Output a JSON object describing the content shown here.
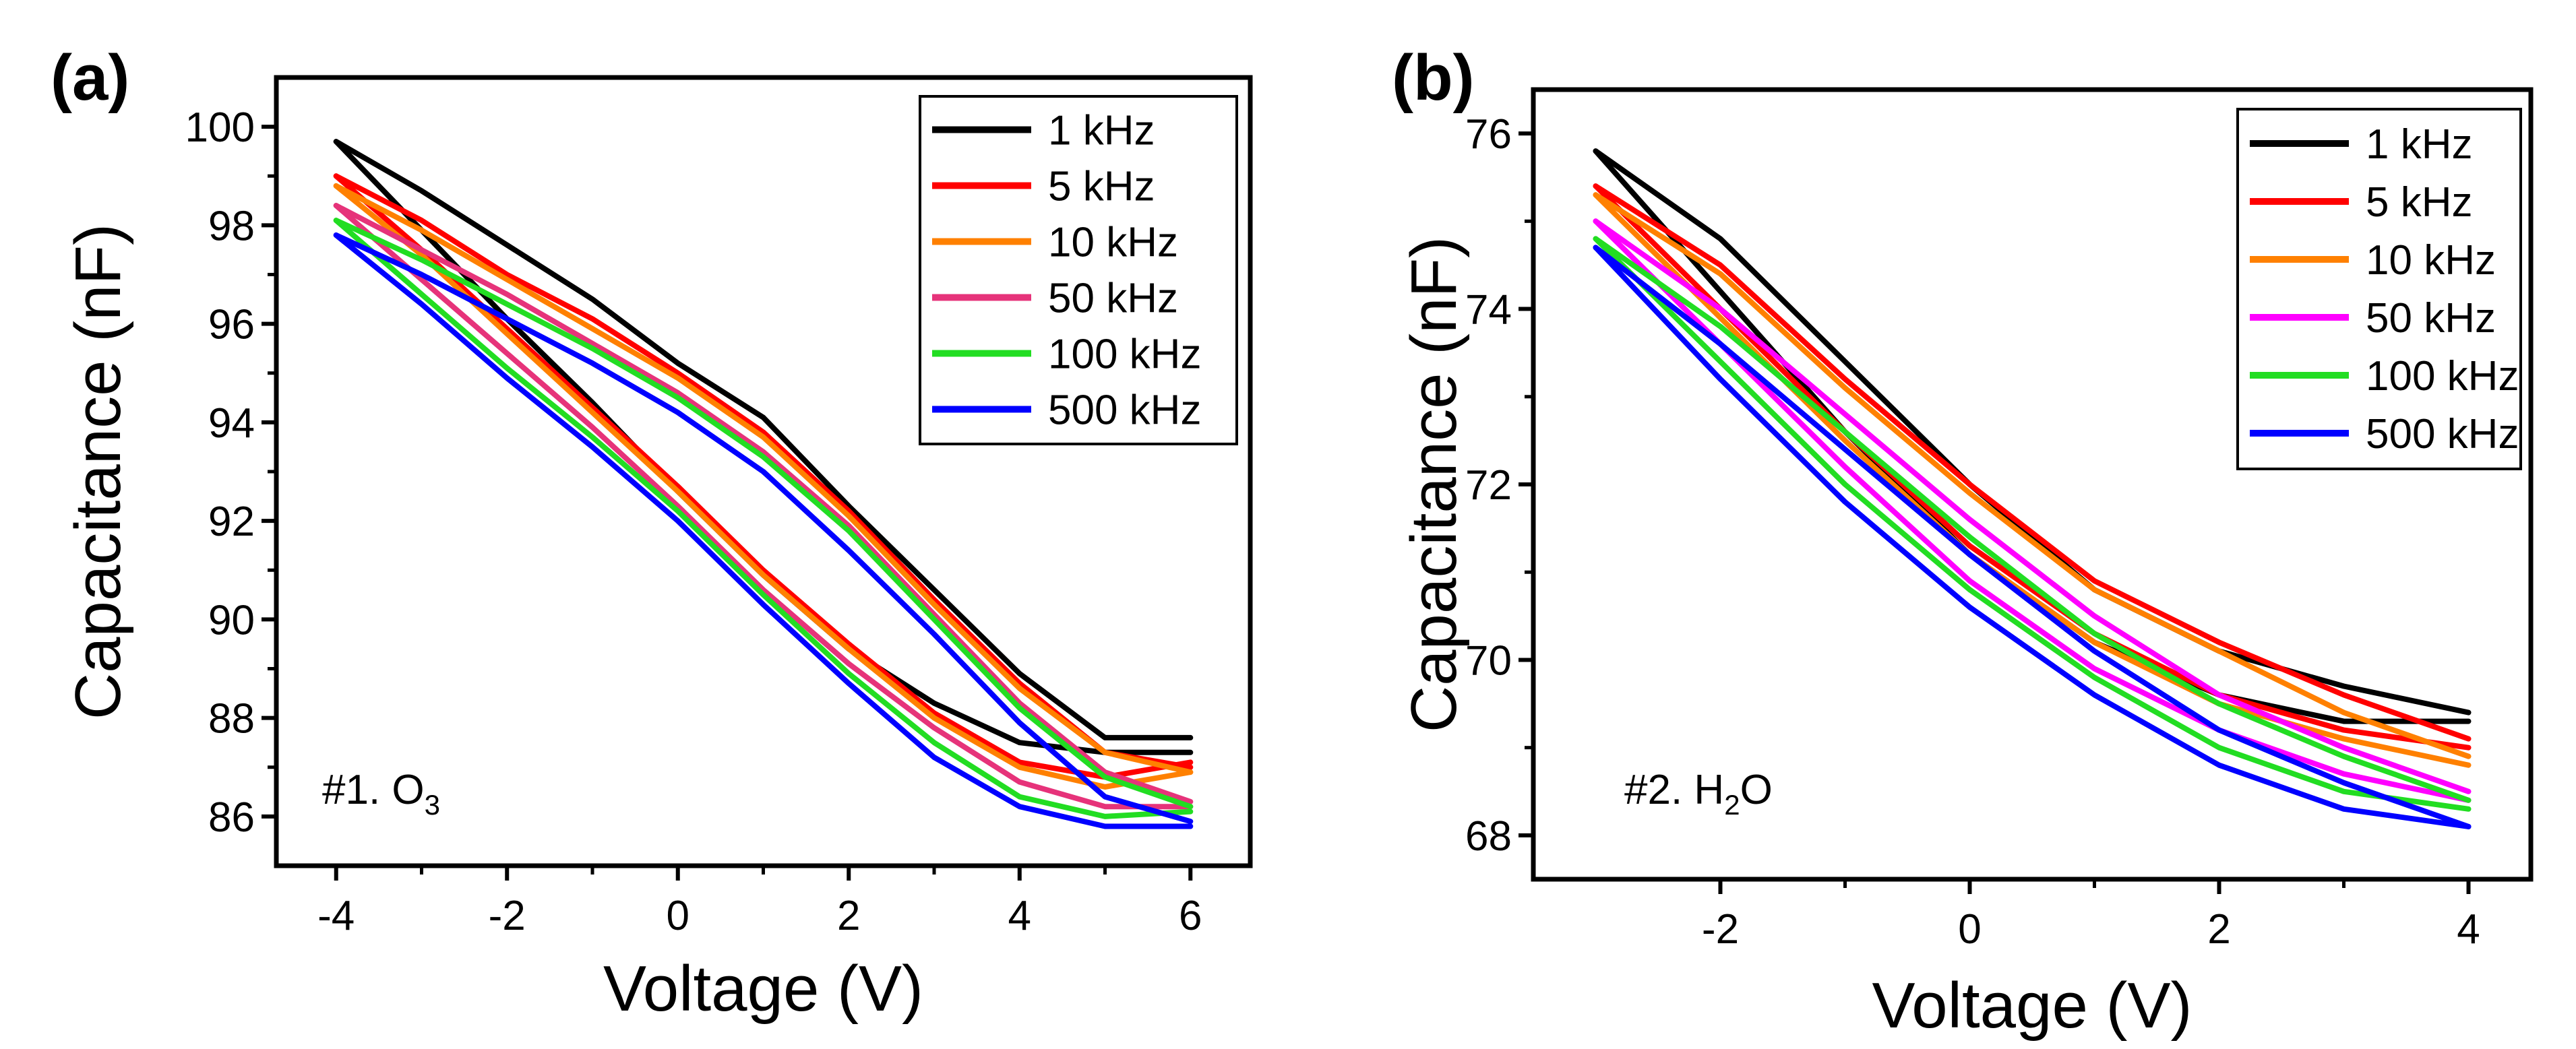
{
  "figure": {
    "panels": [
      {
        "label": "(a)",
        "annotation": {
          "prefix": "#1. O",
          "sub": "3",
          "suffix": ""
        }
      },
      {
        "label": "(b)",
        "annotation": {
          "prefix": "#2. H",
          "sub": "2",
          "suffix": "O"
        }
      }
    ]
  },
  "chart_data": [
    {
      "type": "line",
      "panel": "(a)",
      "xlabel": "Voltage (V)",
      "ylabel": "Capacitance (nF)",
      "xlim": [
        -4.7,
        6.7
      ],
      "ylim": [
        85.0,
        101.0
      ],
      "xticks": [
        -4,
        -2,
        0,
        2,
        4,
        6
      ],
      "yticks": [
        86,
        88,
        90,
        92,
        94,
        96,
        98,
        100
      ],
      "annotation": "#1. O3",
      "legend": {
        "position": "top-right"
      },
      "series": [
        {
          "name": "1 kHz",
          "color": "#000000",
          "upper": {
            "x": [
              -4,
              -3,
              -2,
              -1,
              0,
              1,
              2,
              3,
              4,
              5,
              6
            ],
            "y": [
              99.7,
              98.7,
              97.6,
              96.5,
              95.2,
              94.1,
              92.3,
              90.6,
              88.9,
              87.6,
              87.6
            ]
          },
          "lower": {
            "x": [
              -4,
              -3,
              -2,
              -1,
              0,
              1,
              2,
              3,
              4,
              5,
              6
            ],
            "y": [
              99.7,
              97.9,
              96.1,
              94.4,
              92.6,
              90.9,
              89.4,
              88.3,
              87.5,
              87.3,
              87.3
            ]
          }
        },
        {
          "name": "5 kHz",
          "color": "#ff0000",
          "upper": {
            "x": [
              -4,
              -3,
              -2,
              -1,
              0,
              1,
              2,
              3,
              4,
              5,
              6
            ],
            "y": [
              99.0,
              98.1,
              97.0,
              96.1,
              95.0,
              93.8,
              92.2,
              90.4,
              88.7,
              87.3,
              87.0
            ]
          },
          "lower": {
            "x": [
              -4,
              -3,
              -2,
              -1,
              0,
              1,
              2,
              3,
              4,
              5,
              6
            ],
            "y": [
              99.0,
              97.5,
              95.9,
              94.3,
              92.7,
              91.0,
              89.5,
              88.1,
              87.1,
              86.8,
              87.1
            ]
          }
        },
        {
          "name": "10 kHz",
          "color": "#ff8000",
          "upper": {
            "x": [
              -4,
              -3,
              -2,
              -1,
              0,
              1,
              2,
              3,
              4,
              5,
              6
            ],
            "y": [
              98.8,
              97.9,
              96.9,
              95.9,
              94.9,
              93.7,
              92.1,
              90.3,
              88.6,
              87.3,
              86.9
            ]
          },
          "lower": {
            "x": [
              -4,
              -3,
              -2,
              -1,
              0,
              1,
              2,
              3,
              4,
              5,
              6
            ],
            "y": [
              98.8,
              97.4,
              95.8,
              94.2,
              92.6,
              90.9,
              89.4,
              88.0,
              87.0,
              86.6,
              86.9
            ]
          }
        },
        {
          "name": "50 kHz",
          "color": "#e6337a",
          "upper": {
            "x": [
              -4,
              -3,
              -2,
              -1,
              0,
              1,
              2,
              3,
              4,
              5,
              6
            ],
            "y": [
              98.4,
              97.5,
              96.6,
              95.6,
              94.6,
              93.4,
              91.9,
              90.1,
              88.3,
              86.9,
              86.3
            ]
          },
          "lower": {
            "x": [
              -4,
              -3,
              -2,
              -1,
              0,
              1,
              2,
              3,
              4,
              5,
              6
            ],
            "y": [
              98.4,
              96.9,
              95.4,
              93.9,
              92.3,
              90.6,
              89.1,
              87.8,
              86.7,
              86.2,
              86.2
            ]
          }
        },
        {
          "name": "100 kHz",
          "color": "#22dd22",
          "upper": {
            "x": [
              -4,
              -3,
              -2,
              -1,
              0,
              1,
              2,
              3,
              4,
              5,
              6
            ],
            "y": [
              98.1,
              97.3,
              96.4,
              95.5,
              94.5,
              93.3,
              91.8,
              90.0,
              88.2,
              86.8,
              86.2
            ]
          },
          "lower": {
            "x": [
              -4,
              -3,
              -2,
              -1,
              0,
              1,
              2,
              3,
              4,
              5,
              6
            ],
            "y": [
              98.1,
              96.6,
              95.1,
              93.7,
              92.2,
              90.5,
              88.9,
              87.5,
              86.4,
              86.0,
              86.1
            ]
          }
        },
        {
          "name": "500 kHz",
          "color": "#0000ff",
          "upper": {
            "x": [
              -4,
              -3,
              -2,
              -1,
              0,
              1,
              2,
              3,
              4,
              5,
              6
            ],
            "y": [
              97.8,
              97.0,
              96.1,
              95.2,
              94.2,
              93.0,
              91.4,
              89.7,
              87.9,
              86.4,
              85.9
            ]
          },
          "lower": {
            "x": [
              -4,
              -3,
              -2,
              -1,
              0,
              1,
              2,
              3,
              4,
              5,
              6
            ],
            "y": [
              97.8,
              96.4,
              94.9,
              93.5,
              92.0,
              90.3,
              88.7,
              87.2,
              86.2,
              85.8,
              85.8
            ]
          }
        }
      ]
    },
    {
      "type": "line",
      "panel": "(b)",
      "xlabel": "Voltage (V)",
      "ylabel": "Capacitance (nF)",
      "xlim": [
        -3.5,
        4.5
      ],
      "ylim": [
        67.5,
        76.5
      ],
      "xticks": [
        -2,
        0,
        2,
        4
      ],
      "yticks": [
        68,
        70,
        72,
        74,
        76
      ],
      "annotation": "#2. H2O",
      "legend": {
        "position": "top-right"
      },
      "series": [
        {
          "name": "1 kHz",
          "color": "#000000",
          "upper": {
            "x": [
              -3,
              -2,
              -1,
              0,
              1,
              2,
              3,
              4
            ],
            "y": [
              75.8,
              74.8,
              73.4,
              72.0,
              70.8,
              70.1,
              69.7,
              69.4
            ]
          },
          "lower": {
            "x": [
              -3,
              -2,
              -1,
              0,
              1,
              2,
              3,
              4
            ],
            "y": [
              75.8,
              74.2,
              72.6,
              71.2,
              70.2,
              69.6,
              69.3,
              69.3
            ]
          }
        },
        {
          "name": "5 kHz",
          "color": "#ff0000",
          "upper": {
            "x": [
              -3,
              -2,
              -1,
              0,
              1,
              2,
              3,
              4
            ],
            "y": [
              75.4,
              74.5,
              73.2,
              72.0,
              70.9,
              70.2,
              69.6,
              69.1
            ]
          },
          "lower": {
            "x": [
              -3,
              -2,
              -1,
              0,
              1,
              2,
              3,
              4
            ],
            "y": [
              75.4,
              74.0,
              72.6,
              71.3,
              70.3,
              69.6,
              69.2,
              69.0
            ]
          }
        },
        {
          "name": "10 kHz",
          "color": "#ff8000",
          "upper": {
            "x": [
              -3,
              -2,
              -1,
              0,
              1,
              2,
              3,
              4
            ],
            "y": [
              75.3,
              74.4,
              73.1,
              71.9,
              70.8,
              70.1,
              69.4,
              68.9
            ]
          },
          "lower": {
            "x": [
              -3,
              -2,
              -1,
              0,
              1,
              2,
              3,
              4
            ],
            "y": [
              75.3,
              73.9,
              72.5,
              71.2,
              70.2,
              69.5,
              69.1,
              68.8
            ]
          }
        },
        {
          "name": "50 kHz",
          "color": "#ff00ff",
          "upper": {
            "x": [
              -3,
              -2,
              -1,
              0,
              1,
              2,
              3,
              4
            ],
            "y": [
              75.0,
              74.0,
              72.8,
              71.6,
              70.5,
              69.6,
              69.0,
              68.5
            ]
          },
          "lower": {
            "x": [
              -3,
              -2,
              -1,
              0,
              1,
              2,
              3,
              4
            ],
            "y": [
              75.0,
              73.6,
              72.2,
              70.9,
              69.9,
              69.2,
              68.7,
              68.4
            ]
          }
        },
        {
          "name": "100 kHz",
          "color": "#22dd22",
          "upper": {
            "x": [
              -3,
              -2,
              -1,
              0,
              1,
              2,
              3,
              4
            ],
            "y": [
              74.8,
              73.8,
              72.6,
              71.4,
              70.3,
              69.5,
              68.9,
              68.4
            ]
          },
          "lower": {
            "x": [
              -3,
              -2,
              -1,
              0,
              1,
              2,
              3,
              4
            ],
            "y": [
              74.8,
              73.4,
              72.0,
              70.8,
              69.8,
              69.0,
              68.5,
              68.3
            ]
          }
        },
        {
          "name": "500 kHz",
          "color": "#0000ff",
          "upper": {
            "x": [
              -3,
              -2,
              -1,
              0,
              1,
              2,
              3,
              4
            ],
            "y": [
              74.7,
              73.6,
              72.4,
              71.2,
              70.1,
              69.2,
              68.6,
              68.1
            ]
          },
          "lower": {
            "x": [
              -3,
              -2,
              -1,
              0,
              1,
              2,
              3,
              4
            ],
            "y": [
              74.7,
              73.2,
              71.8,
              70.6,
              69.6,
              68.8,
              68.3,
              68.1
            ]
          }
        }
      ]
    }
  ]
}
